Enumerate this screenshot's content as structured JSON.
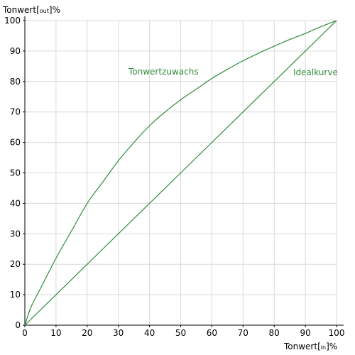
{
  "chart_data": {
    "type": "line",
    "title": "",
    "x_axis": {
      "label_main": "Tonwert",
      "label_sub": "in",
      "label_unit": "%",
      "range": [
        0,
        100
      ],
      "ticks": [
        0,
        10,
        20,
        30,
        40,
        50,
        60,
        70,
        80,
        90,
        100
      ]
    },
    "y_axis": {
      "label_main": "Tonwert",
      "label_sub": "out",
      "label_unit": "%",
      "range": [
        0,
        100
      ],
      "ticks": [
        0,
        10,
        20,
        30,
        40,
        50,
        60,
        70,
        80,
        90,
        100
      ]
    },
    "grid": true,
    "legend": "none",
    "series": [
      {
        "name": "Tonwertzuwachs",
        "color": "#2e8b3a",
        "points": [
          [
            0,
            0
          ],
          [
            2,
            6
          ],
          [
            5,
            12
          ],
          [
            10,
            22
          ],
          [
            15,
            31
          ],
          [
            20,
            40
          ],
          [
            25,
            47
          ],
          [
            30,
            54
          ],
          [
            35,
            60
          ],
          [
            40,
            65.5
          ],
          [
            45,
            70
          ],
          [
            50,
            74
          ],
          [
            55,
            77.5
          ],
          [
            60,
            81
          ],
          [
            65,
            84
          ],
          [
            70,
            86.8
          ],
          [
            75,
            89.3
          ],
          [
            80,
            91.6
          ],
          [
            85,
            93.8
          ],
          [
            90,
            95.8
          ],
          [
            95,
            98
          ],
          [
            100,
            100
          ]
        ]
      },
      {
        "name": "Idealkurve",
        "color": "#2e8b3a",
        "points": [
          [
            0,
            0
          ],
          [
            100,
            100
          ]
        ]
      }
    ]
  }
}
